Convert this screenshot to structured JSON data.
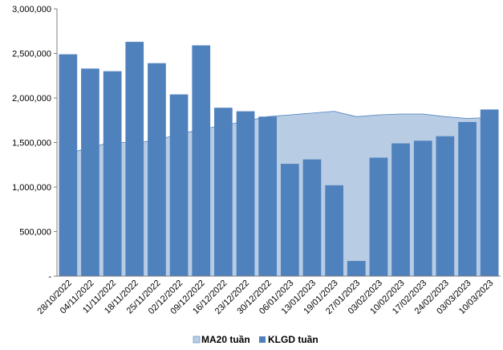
{
  "chart_data": {
    "type": "bar",
    "categories": [
      "28/10/2022",
      "04/11/2022",
      "11/11/2022",
      "18/11/2022",
      "25/11/2022",
      "02/12/2022",
      "09/12/2022",
      "16/12/2022",
      "23/12/2022",
      "30/12/2022",
      "06/01/2023",
      "13/01/2023",
      "19/01/2023",
      "27/01/2023",
      "03/02/2023",
      "10/02/2023",
      "17/02/2023",
      "24/02/2023",
      "03/03/2023",
      "10/03/2023"
    ],
    "series": [
      {
        "name": "MA20 tuần",
        "kind": "area",
        "color": "#b8cce4",
        "values": [
          1380000,
          1440000,
          1510000,
          1490000,
          1530000,
          1590000,
          1650000,
          1690000,
          1740000,
          1790000,
          1810000,
          1830000,
          1850000,
          1790000,
          1810000,
          1820000,
          1820000,
          1790000,
          1770000,
          1780000
        ]
      },
      {
        "name": "KLGD tuần",
        "kind": "bar",
        "color": "#4f81bd",
        "values": [
          2490000,
          2330000,
          2300000,
          2630000,
          2390000,
          2040000,
          2590000,
          1890000,
          1850000,
          1790000,
          1260000,
          1310000,
          1020000,
          170000,
          1330000,
          1490000,
          1520000,
          1570000,
          1730000,
          1870000
        ]
      }
    ],
    "y_ticks": [
      "-",
      "500,000",
      "1,000,000",
      "1,500,000",
      "2,000,000",
      "2,500,000",
      "3,000,000"
    ],
    "ylim": [
      0,
      3000000
    ],
    "grid": false,
    "legend_position": "bottom",
    "title": "",
    "xlabel": "",
    "ylabel": ""
  },
  "legend": {
    "items": [
      {
        "label": "MA20 tuần",
        "color": "#b8cce4"
      },
      {
        "label": "KLGD tuần",
        "color": "#4f81bd"
      }
    ]
  }
}
